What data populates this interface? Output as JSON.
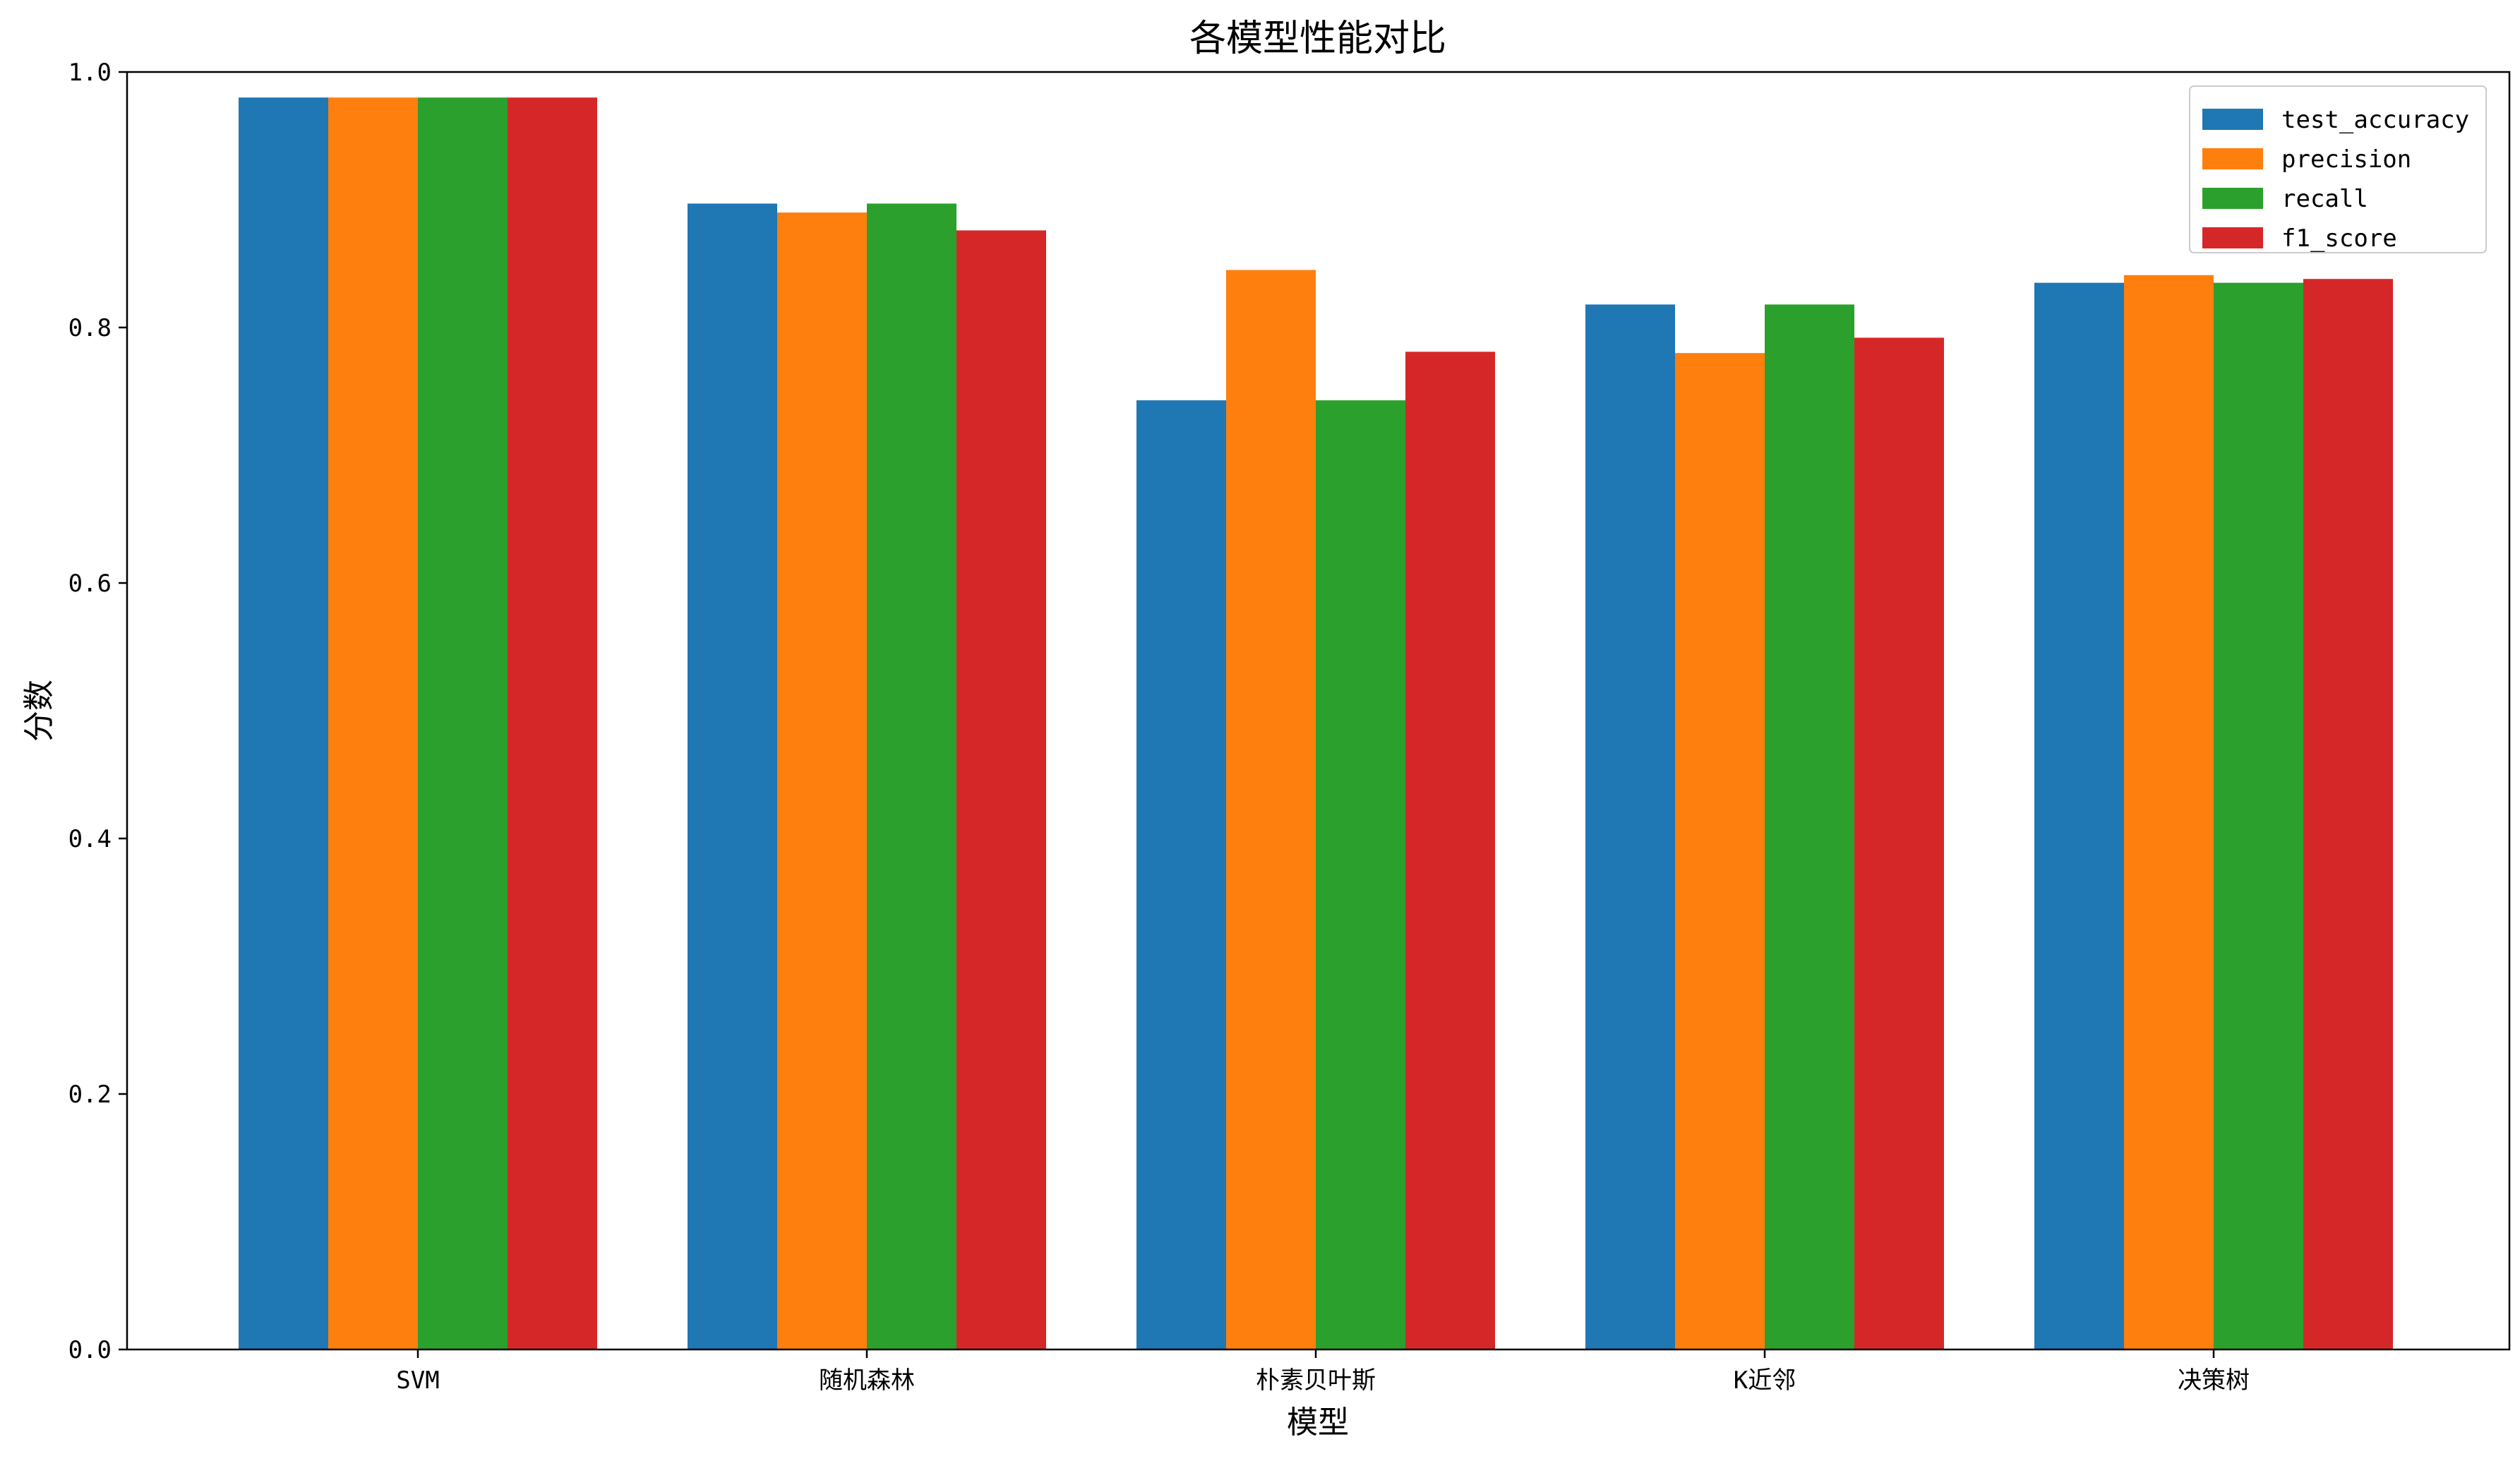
{
  "chart_data": {
    "type": "bar",
    "title": "各模型性能对比",
    "xlabel": "模型",
    "ylabel": "分数",
    "categories": [
      "SVM",
      "随机森林",
      "朴素贝叶斯",
      "K近邻",
      "决策树"
    ],
    "series": [
      {
        "name": "test_accuracy",
        "color": "#1f77b4",
        "values": [
          0.98,
          0.897,
          0.743,
          0.818,
          0.835
        ]
      },
      {
        "name": "precision",
        "color": "#ff7f0e",
        "values": [
          0.98,
          0.89,
          0.845,
          0.78,
          0.841
        ]
      },
      {
        "name": "recall",
        "color": "#2ca02c",
        "values": [
          0.98,
          0.897,
          0.743,
          0.818,
          0.835
        ]
      },
      {
        "name": "f1_score",
        "color": "#d62728",
        "values": [
          0.98,
          0.876,
          0.781,
          0.792,
          0.838
        ]
      }
    ],
    "ylim": [
      0,
      1.0
    ],
    "yticks": [
      0.0,
      0.2,
      0.4,
      0.6,
      0.8,
      1.0
    ],
    "ytick_labels": [
      "0.0",
      "0.2",
      "0.4",
      "0.6",
      "0.8",
      "1.0"
    ],
    "grid": false,
    "legend_position": "top-right"
  }
}
